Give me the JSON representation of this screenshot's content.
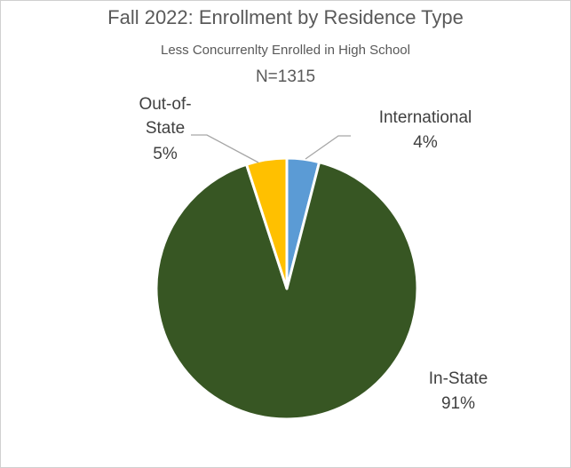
{
  "chart_data": {
    "type": "pie",
    "title": "Fall 2022: Enrollment by Residence Type",
    "subtitle": "Less Concurrenlty Enrolled in High School",
    "annotation": "N=1315",
    "categories": [
      "International",
      "In-State",
      "Out-of-State"
    ],
    "values": [
      4,
      91,
      5
    ],
    "value_labels": [
      "4%",
      "91%",
      "5%"
    ],
    "colors": [
      "#5b9bd5",
      "#375623",
      "#ffc000"
    ]
  }
}
